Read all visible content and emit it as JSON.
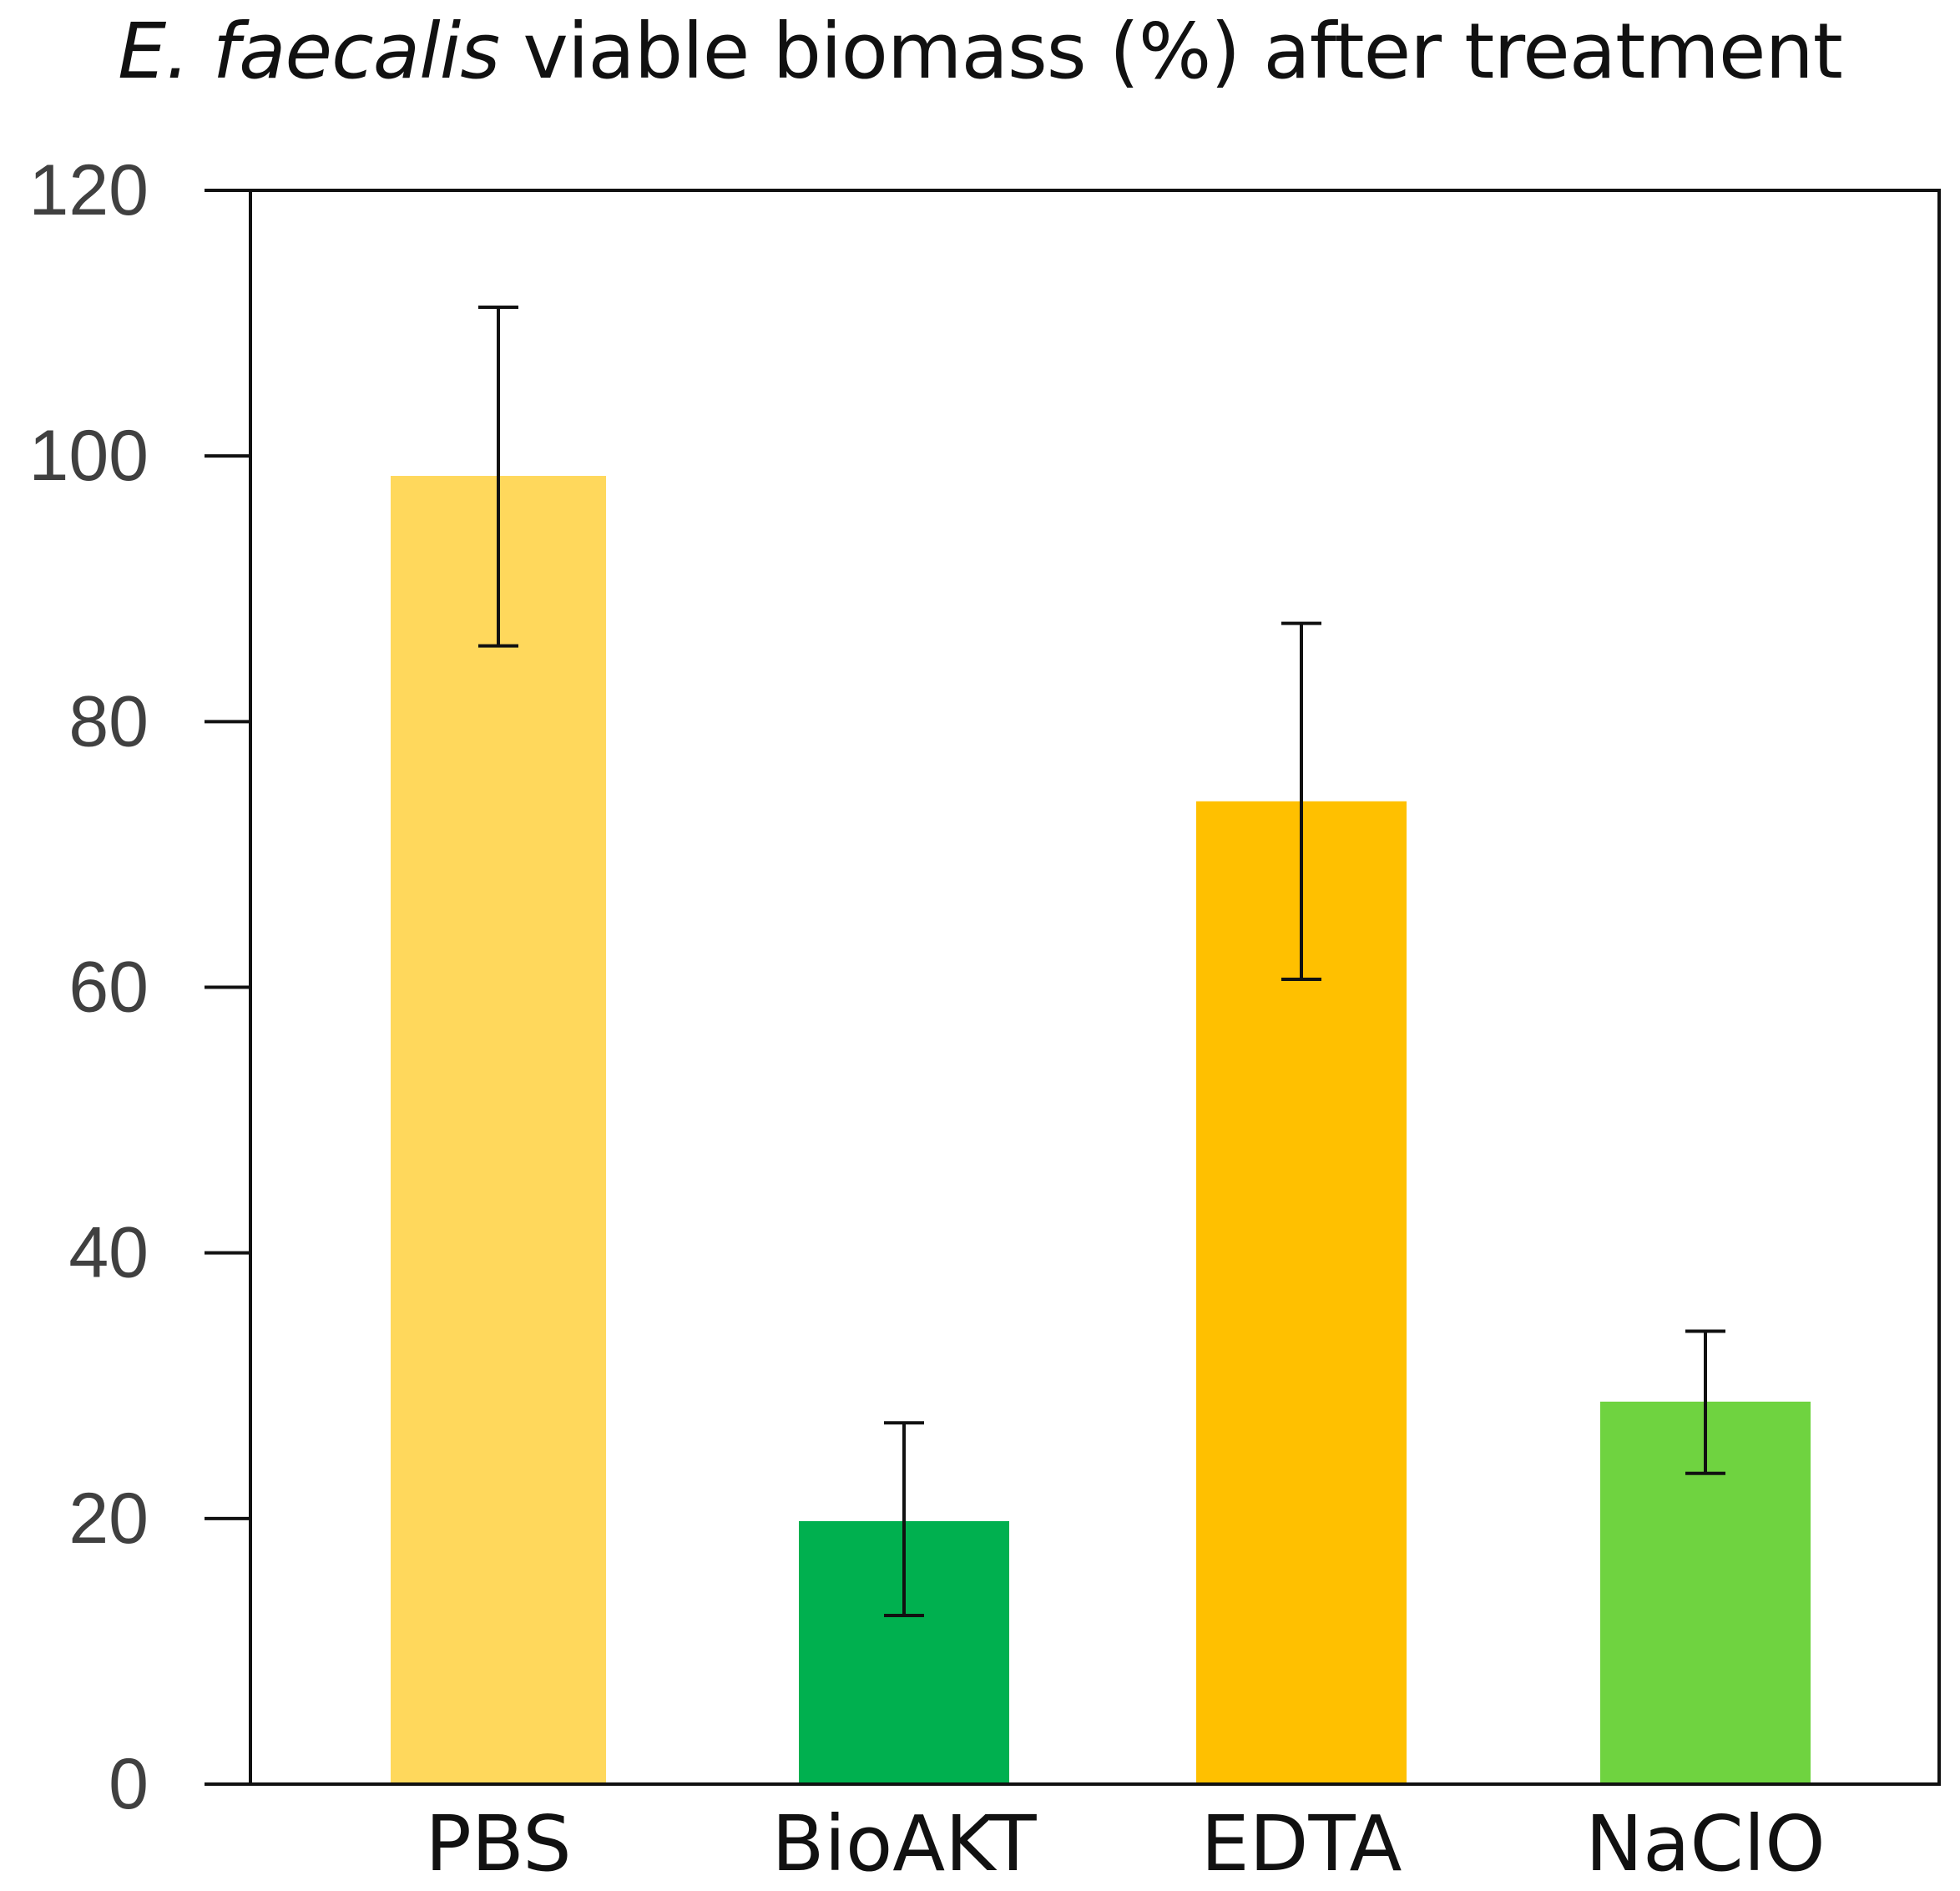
{
  "chart_data": {
    "type": "bar",
    "title_italic": "E. faecalis",
    "title_rest": " viable biomass (%) after treatment",
    "xlabel": "",
    "ylabel": "",
    "ylim": [
      0,
      120
    ],
    "yticks": [
      0,
      20,
      40,
      60,
      80,
      100,
      120
    ],
    "grid": false,
    "categories": [
      "PBS",
      "BioAKT",
      "EDTA",
      "NaClO"
    ],
    "values": [
      98.5,
      19.8,
      74.0,
      28.8
    ],
    "error_low": [
      85.7,
      12.7,
      60.6,
      23.4
    ],
    "error_high": [
      111.2,
      27.2,
      87.4,
      34.1
    ],
    "colors": [
      "#FFD85C",
      "#00B04F",
      "#FFC000",
      "#6FD340"
    ],
    "axis_color": "#111111",
    "error_bar_color": "#111111"
  }
}
